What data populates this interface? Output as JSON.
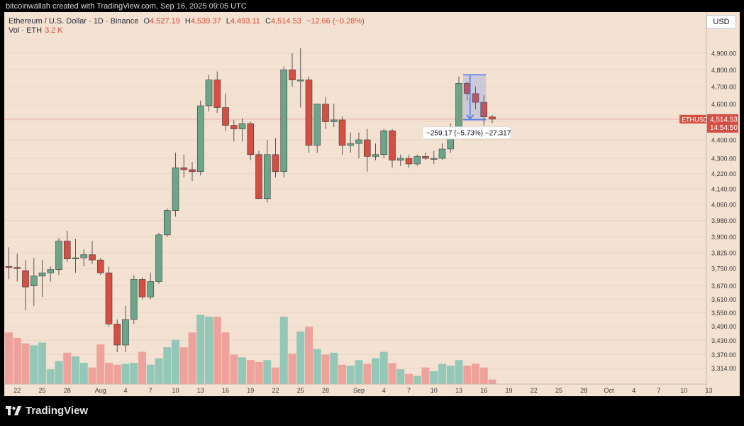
{
  "header": {
    "text": "bitcoinwallah created with TradingView.com, Sep 16, 2025 09:05 UTC"
  },
  "legend": {
    "symbol": "Ethereum / U.S. Dollar · 1D · Binance",
    "open_label": "O",
    "open": "4,527.19",
    "high_label": "H",
    "high": "4,539.37",
    "low_label": "L",
    "low": "4,493.11",
    "close_label": "C",
    "close": "4,514.53",
    "change": "−12.66 (−0.28%)",
    "vol_label": "Vol · ETH",
    "vol_value": "3.2 K"
  },
  "currency_button": "USD",
  "price_tag": {
    "symbol": "ETHUSD",
    "price": "4,514.53",
    "countdown": "14:54:50"
  },
  "measure": {
    "label": "−259.17 (−5.73%) −27,317"
  },
  "footer": {
    "brand": "TradingView"
  },
  "colors": {
    "up": "#6ba58a",
    "down": "#d54e42",
    "vol_up": "#93c7b7",
    "vol_down": "#eea29b",
    "background": "#f3e1d1",
    "measure": "#4a78e8"
  },
  "chart_data": {
    "type": "candlestick",
    "title": "Ethereum / U.S. Dollar · 1D · Binance",
    "y_scale": "log",
    "ylim": [
      3260,
      5000
    ],
    "y_ticks": [
      3314,
      3370,
      3430,
      3490,
      3550,
      3610,
      3670,
      3750,
      3825,
      3900,
      3980,
      4060,
      4140,
      4220,
      4300,
      4400,
      4500,
      4600,
      4700,
      4800,
      4900
    ],
    "y_tick_labels": [
      "3,314.00",
      "3,370.00",
      "3,430.00",
      "3,490.00",
      "3,550.00",
      "3,610.00",
      "3,670.00",
      "3,750.00",
      "3,825.00",
      "3,900.00",
      "3,980.00",
      "4,060.00",
      "4,140.00",
      "4,220.00",
      "4,300.00",
      "4,400.00",
      "4,500.00",
      "4,600.00",
      "4,700.00",
      "4,800.00",
      "4,900.00"
    ],
    "x_ticks": [
      {
        "i": 1,
        "label": "22"
      },
      {
        "i": 4,
        "label": "25"
      },
      {
        "i": 7,
        "label": "28"
      },
      {
        "i": 11,
        "label": "Aug"
      },
      {
        "i": 14,
        "label": "4"
      },
      {
        "i": 17,
        "label": "7"
      },
      {
        "i": 20,
        "label": "10"
      },
      {
        "i": 23,
        "label": "13"
      },
      {
        "i": 26,
        "label": "16"
      },
      {
        "i": 29,
        "label": "19"
      },
      {
        "i": 32,
        "label": "22"
      },
      {
        "i": 35,
        "label": "25"
      },
      {
        "i": 38,
        "label": "28"
      },
      {
        "i": 42,
        "label": "Sep"
      },
      {
        "i": 45,
        "label": "4"
      },
      {
        "i": 48,
        "label": "7"
      },
      {
        "i": 51,
        "label": "10"
      },
      {
        "i": 54,
        "label": "13"
      },
      {
        "i": 57,
        "label": "16"
      },
      {
        "i": 60,
        "label": "19"
      },
      {
        "i": 63,
        "label": "22"
      },
      {
        "i": 66,
        "label": "25"
      },
      {
        "i": 69,
        "label": "28"
      },
      {
        "i": 72,
        "label": "Oct"
      },
      {
        "i": 75,
        "label": "4"
      },
      {
        "i": 78,
        "label": "7"
      },
      {
        "i": 81,
        "label": "10"
      },
      {
        "i": 84,
        "label": "13"
      }
    ],
    "candles": [
      {
        "o": 3760,
        "h": 3850,
        "l": 3700,
        "c": 3755,
        "v": 56
      },
      {
        "o": 3755,
        "h": 3820,
        "l": 3690,
        "c": 3750,
        "v": 50
      },
      {
        "o": 3740,
        "h": 3790,
        "l": 3560,
        "c": 3665,
        "v": 44
      },
      {
        "o": 3670,
        "h": 3800,
        "l": 3580,
        "c": 3715,
        "v": 42
      },
      {
        "o": 3715,
        "h": 3790,
        "l": 3620,
        "c": 3730,
        "v": 45
      },
      {
        "o": 3730,
        "h": 3760,
        "l": 3690,
        "c": 3745,
        "v": 16
      },
      {
        "o": 3745,
        "h": 3895,
        "l": 3720,
        "c": 3880,
        "v": 25
      },
      {
        "o": 3880,
        "h": 3930,
        "l": 3780,
        "c": 3795,
        "v": 34
      },
      {
        "o": 3800,
        "h": 3890,
        "l": 3730,
        "c": 3800,
        "v": 30
      },
      {
        "o": 3800,
        "h": 3840,
        "l": 3760,
        "c": 3815,
        "v": 23
      },
      {
        "o": 3815,
        "h": 3880,
        "l": 3770,
        "c": 3790,
        "v": 18
      },
      {
        "o": 3790,
        "h": 3800,
        "l": 3720,
        "c": 3730,
        "v": 43
      },
      {
        "o": 3730,
        "h": 3760,
        "l": 3490,
        "c": 3500,
        "v": 23
      },
      {
        "o": 3500,
        "h": 3520,
        "l": 3380,
        "c": 3410,
        "v": 21
      },
      {
        "o": 3410,
        "h": 3580,
        "l": 3380,
        "c": 3520,
        "v": 22
      },
      {
        "o": 3520,
        "h": 3720,
        "l": 3500,
        "c": 3700,
        "v": 23
      },
      {
        "o": 3700,
        "h": 3710,
        "l": 3610,
        "c": 3620,
        "v": 35
      },
      {
        "o": 3620,
        "h": 3730,
        "l": 3610,
        "c": 3690,
        "v": 21
      },
      {
        "o": 3690,
        "h": 3920,
        "l": 3680,
        "c": 3910,
        "v": 28
      },
      {
        "o": 3910,
        "h": 4040,
        "l": 3900,
        "c": 4030,
        "v": 40
      },
      {
        "o": 4030,
        "h": 4330,
        "l": 4000,
        "c": 4250,
        "v": 48
      },
      {
        "o": 4250,
        "h": 4320,
        "l": 4200,
        "c": 4240,
        "v": 40
      },
      {
        "o": 4240,
        "h": 4280,
        "l": 4180,
        "c": 4230,
        "v": 56
      },
      {
        "o": 4230,
        "h": 4620,
        "l": 4210,
        "c": 4590,
        "v": 75
      },
      {
        "o": 4590,
        "h": 4770,
        "l": 4560,
        "c": 4740,
        "v": 73
      },
      {
        "o": 4740,
        "h": 4790,
        "l": 4550,
        "c": 4580,
        "v": 73
      },
      {
        "o": 4580,
        "h": 4660,
        "l": 4450,
        "c": 4480,
        "v": 56
      },
      {
        "o": 4480,
        "h": 4510,
        "l": 4390,
        "c": 4460,
        "v": 32
      },
      {
        "o": 4460,
        "h": 4520,
        "l": 4390,
        "c": 4490,
        "v": 29
      },
      {
        "o": 4490,
        "h": 4500,
        "l": 4290,
        "c": 4320,
        "v": 26
      },
      {
        "o": 4320,
        "h": 4340,
        "l": 4090,
        "c": 4090,
        "v": 24
      },
      {
        "o": 4090,
        "h": 4400,
        "l": 4070,
        "c": 4320,
        "v": 26
      },
      {
        "o": 4320,
        "h": 4410,
        "l": 4200,
        "c": 4230,
        "v": 18
      },
      {
        "o": 4230,
        "h": 4820,
        "l": 4200,
        "c": 4800,
        "v": 73
      },
      {
        "o": 4800,
        "h": 4900,
        "l": 4700,
        "c": 4740,
        "v": 33
      },
      {
        "o": 4740,
        "h": 4930,
        "l": 4580,
        "c": 4740,
        "v": 57
      },
      {
        "o": 4740,
        "h": 4760,
        "l": 4330,
        "c": 4370,
        "v": 62
      },
      {
        "o": 4370,
        "h": 4600,
        "l": 4330,
        "c": 4600,
        "v": 38
      },
      {
        "o": 4600,
        "h": 4640,
        "l": 4460,
        "c": 4500,
        "v": 32
      },
      {
        "o": 4500,
        "h": 4600,
        "l": 4470,
        "c": 4510,
        "v": 34
      },
      {
        "o": 4510,
        "h": 4530,
        "l": 4320,
        "c": 4370,
        "v": 21
      },
      {
        "o": 4370,
        "h": 4440,
        "l": 4330,
        "c": 4380,
        "v": 20
      },
      {
        "o": 4380,
        "h": 4440,
        "l": 4300,
        "c": 4400,
        "v": 26
      },
      {
        "o": 4400,
        "h": 4460,
        "l": 4230,
        "c": 4310,
        "v": 22
      },
      {
        "o": 4310,
        "h": 4380,
        "l": 4290,
        "c": 4320,
        "v": 28
      },
      {
        "o": 4320,
        "h": 4460,
        "l": 4300,
        "c": 4450,
        "v": 35
      },
      {
        "o": 4450,
        "h": 4460,
        "l": 4250,
        "c": 4290,
        "v": 23
      },
      {
        "o": 4290,
        "h": 4320,
        "l": 4260,
        "c": 4300,
        "v": 16
      },
      {
        "o": 4300,
        "h": 4320,
        "l": 4250,
        "c": 4270,
        "v": 11
      },
      {
        "o": 4270,
        "h": 4320,
        "l": 4260,
        "c": 4310,
        "v": 9
      },
      {
        "o": 4310,
        "h": 4330,
        "l": 4290,
        "c": 4300,
        "v": 18
      },
      {
        "o": 4300,
        "h": 4340,
        "l": 4270,
        "c": 4300,
        "v": 14
      },
      {
        "o": 4300,
        "h": 4380,
        "l": 4290,
        "c": 4350,
        "v": 22
      },
      {
        "o": 4350,
        "h": 4490,
        "l": 4330,
        "c": 4470,
        "v": 20
      },
      {
        "o": 4470,
        "h": 4760,
        "l": 4460,
        "c": 4720,
        "v": 26
      },
      {
        "o": 4720,
        "h": 4730,
        "l": 4620,
        "c": 4660,
        "v": 20
      },
      {
        "o": 4660,
        "h": 4700,
        "l": 4570,
        "c": 4610,
        "v": 22
      },
      {
        "o": 4610,
        "h": 4650,
        "l": 4480,
        "c": 4527,
        "v": 18
      },
      {
        "o": 4527.19,
        "h": 4539.37,
        "l": 4493.11,
        "c": 4514.53,
        "v": 5
      }
    ]
  }
}
